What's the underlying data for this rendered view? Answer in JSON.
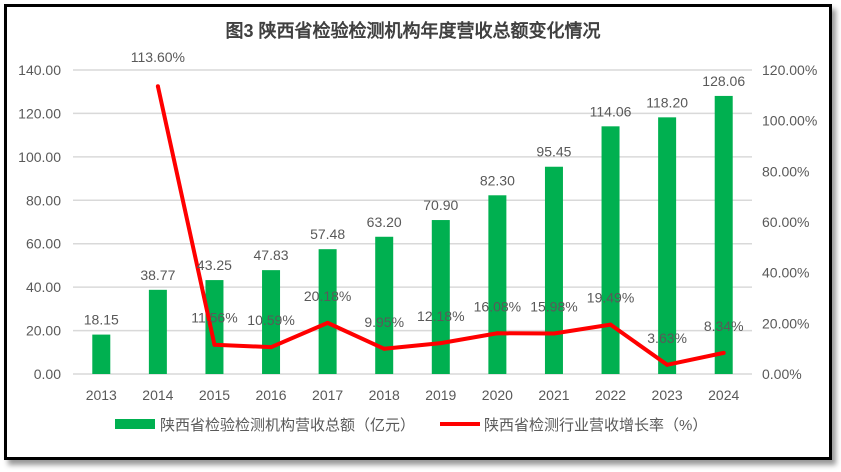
{
  "chart_data": {
    "type": "bar+line",
    "title": "图3 陕西省检验检测机构年度营收总额变化情况",
    "categories": [
      "2013",
      "2014",
      "2015",
      "2016",
      "2017",
      "2018",
      "2019",
      "2020",
      "2021",
      "2022",
      "2023",
      "2024"
    ],
    "series": [
      {
        "name": "陕西省检验检测机构营收总额（亿元）",
        "type": "bar",
        "axis": "left",
        "color": "#00B050",
        "values": [
          18.15,
          38.77,
          43.25,
          47.83,
          57.48,
          63.2,
          70.9,
          82.3,
          95.45,
          114.06,
          118.2,
          128.06
        ],
        "labels": [
          "18.15",
          "38.77",
          "43.25",
          "47.83",
          "57.48",
          "63.20",
          "70.90",
          "82.30",
          "95.45",
          "114.06",
          "118.20",
          "128.06"
        ]
      },
      {
        "name": "陕西省检测行业营收增长率（%）",
        "type": "line",
        "axis": "right",
        "color": "#FF0000",
        "values": [
          null,
          113.6,
          11.56,
          10.59,
          20.18,
          9.95,
          12.18,
          16.08,
          15.98,
          19.49,
          3.63,
          8.34
        ],
        "labels": [
          "",
          "113.60%",
          "11.56%",
          "10.59%",
          "20.18%",
          "9.95%",
          "12.18%",
          "16.08%",
          "15.98%",
          "19.49%",
          "3.63%",
          "8.34%"
        ]
      }
    ],
    "y_left": {
      "range": [
        0,
        140
      ],
      "ticks": [
        "0.00",
        "20.00",
        "40.00",
        "60.00",
        "80.00",
        "100.00",
        "120.00",
        "140.00"
      ]
    },
    "y_right": {
      "range": [
        0,
        120
      ],
      "ticks": [
        "0.00%",
        "20.00%",
        "40.00%",
        "60.00%",
        "80.00%",
        "100.00%",
        "120.00%"
      ]
    },
    "grid": true,
    "legend": "bottom"
  }
}
